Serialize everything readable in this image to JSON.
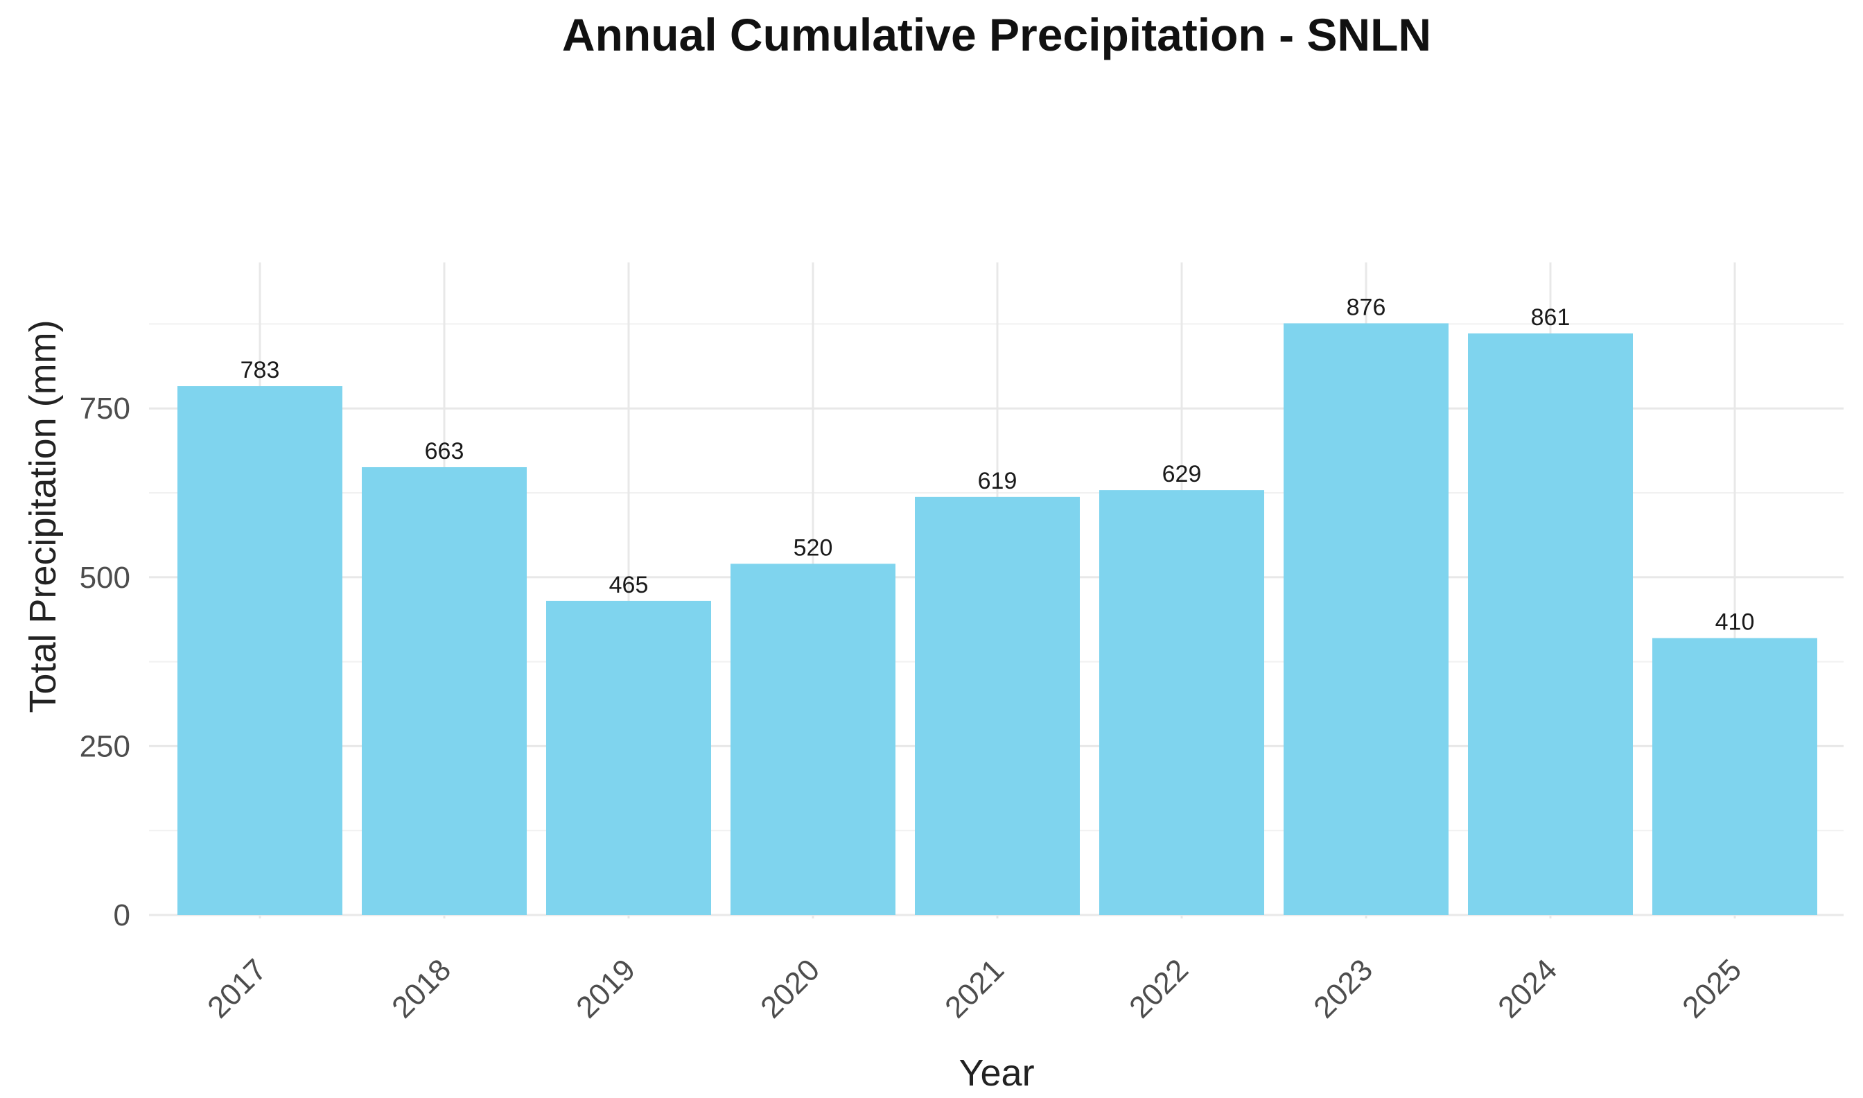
{
  "chart_data": {
    "type": "bar",
    "title": "Annual Cumulative Precipitation - SNLN",
    "xlabel": "Year",
    "ylabel": "Total Precipitation (mm)",
    "categories": [
      "2017",
      "2018",
      "2019",
      "2020",
      "2021",
      "2022",
      "2023",
      "2024",
      "2025"
    ],
    "values": [
      783,
      663,
      465,
      520,
      619,
      629,
      876,
      861,
      410
    ],
    "data_labels": [
      "783",
      "663",
      "465",
      "520",
      "619",
      "629",
      "876",
      "861",
      "410"
    ],
    "y_ticks": [
      0,
      250,
      500,
      750
    ],
    "ylim": [
      0,
      920
    ],
    "grid": true,
    "bar_color": "#7fd4ee"
  }
}
